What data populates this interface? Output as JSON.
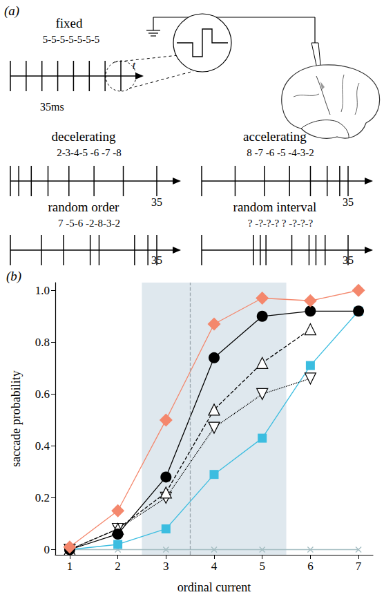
{
  "diagram": {
    "panel_label": "(a)",
    "time_label": "t",
    "trains": [
      {
        "title": "fixed",
        "intervals": "5-5-5-5-5-5-5",
        "end_label": "35ms"
      },
      {
        "title": "decelerating",
        "intervals": "2-3-4-5 -6 -7 -8",
        "end_label": "35"
      },
      {
        "title": "accelerating",
        "intervals": "8 -7 -6 -5 -4-3-2",
        "end_label": "35"
      },
      {
        "title": "random order",
        "intervals": "7 -5-6 -2-8-3-2",
        "end_label": "35"
      },
      {
        "title": "random interval",
        "intervals": "? -?-?-? ? -?-?-?",
        "end_label": "35"
      }
    ]
  },
  "chart_data": {
    "type": "line",
    "panel_label": "(b)",
    "x_label": "ordinal current",
    "y_label": "saccade probability",
    "x": [
      1,
      2,
      3,
      4,
      5,
      6,
      7
    ],
    "xlim": [
      0.7,
      7.3
    ],
    "xticks": [
      1,
      2,
      3,
      4,
      5,
      6,
      7
    ],
    "ylim": [
      -0.02,
      1.03
    ],
    "yticks": [
      0,
      0.2,
      0.4,
      0.6,
      0.8,
      {
        "value": 1,
        "label": "1.0"
      }
    ],
    "grid": false,
    "shaded_x": [
      2.5,
      5.5
    ],
    "vline_x": 3.5,
    "series": [
      {
        "color": "#a3bcc1",
        "marker": "x",
        "line_style": "solid",
        "values": [
          0,
          0,
          0,
          0,
          0,
          0,
          0
        ]
      },
      {
        "color": "#3bbde0",
        "marker": "square",
        "line_style": "solid",
        "values": [
          0,
          0.02,
          0.08,
          0.29,
          0.43,
          0.71,
          0.92
        ]
      },
      {
        "color": "#000000",
        "marker": "triangle-down-open",
        "line_style": "dotted",
        "values": [
          0,
          0.08,
          0.2,
          0.47,
          0.6,
          0.66,
          null
        ]
      },
      {
        "color": "#000000",
        "marker": "triangle-open",
        "line_style": "dashed",
        "values": [
          0,
          0.08,
          0.22,
          0.54,
          0.72,
          0.85,
          null
        ]
      },
      {
        "color": "#000000",
        "marker": "circle",
        "line_style": "solid",
        "values": [
          0,
          0.06,
          0.28,
          0.74,
          0.9,
          0.92,
          0.92
        ]
      },
      {
        "color": "#f4876c",
        "marker": "diamond",
        "line_style": "solid",
        "values": [
          0.01,
          0.15,
          0.5,
          0.87,
          0.97,
          0.96,
          1.0
        ]
      }
    ]
  }
}
